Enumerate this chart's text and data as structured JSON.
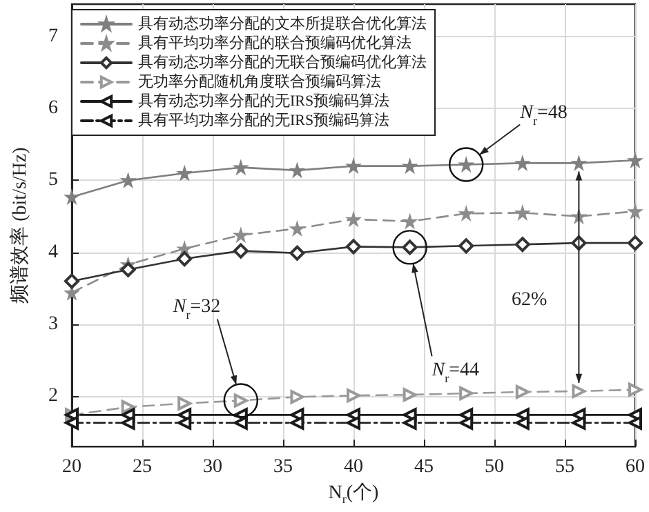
{
  "chart_data": {
    "type": "line",
    "xlabel": "N$_{r}$(个)",
    "ylabel": "频谱效率 (bit/s/Hz)",
    "x": [
      20,
      24,
      28,
      32,
      36,
      40,
      44,
      48,
      52,
      56,
      60
    ],
    "xlim": [
      20,
      60
    ],
    "xticks": [
      20,
      25,
      30,
      35,
      40,
      45,
      50,
      55,
      60
    ],
    "ylim": [
      1.3,
      7.45
    ],
    "yticks": [
      2,
      3,
      4,
      5,
      6,
      7
    ],
    "grid": true,
    "legend": "top left",
    "series": [
      {
        "name": "具有动态功率分配的文本所提联合优化算法",
        "color": "#7f7f7f",
        "marker": "star",
        "line_style": "solid",
        "values": [
          4.77,
          5.0,
          5.1,
          5.18,
          5.14,
          5.2,
          5.2,
          5.22,
          5.24,
          5.24,
          5.28
        ]
      },
      {
        "name": "具有平均功率分配的联合预编码优化算法",
        "color": "#8c8c8c",
        "marker": "star",
        "line_style": "dashed",
        "values": [
          3.44,
          3.83,
          4.05,
          4.24,
          4.33,
          4.46,
          4.43,
          4.54,
          4.55,
          4.5,
          4.57
        ]
      },
      {
        "name": "具有动态功率分配的无联合预编码优化算法",
        "color": "#333333",
        "marker": "diamond",
        "line_style": "solid",
        "values": [
          3.6,
          3.76,
          3.91,
          4.02,
          3.99,
          4.08,
          4.07,
          4.09,
          4.11,
          4.13,
          4.13
        ]
      },
      {
        "name": "无功率分配随机角度联合预编码算法",
        "color": "#9a9a9a",
        "marker": "triangle-right",
        "line_style": "dashed",
        "values": [
          1.74,
          1.85,
          1.9,
          1.94,
          1.99,
          2.01,
          2.02,
          2.04,
          2.06,
          2.07,
          2.09
        ]
      },
      {
        "name": "具有动态功率分配的无IRS预编码算法",
        "color": "#1a1a1a",
        "marker": "triangle-left",
        "line_style": "solid",
        "values": [
          1.74,
          1.74,
          1.74,
          1.74,
          1.74,
          1.74,
          1.74,
          1.74,
          1.74,
          1.74,
          1.74
        ]
      },
      {
        "name": "具有平均功率分配的无IRS预编码算法",
        "color": "#1a1a1a",
        "marker": "triangle-left",
        "line_style": "dashdot",
        "values": [
          1.63,
          1.63,
          1.63,
          1.63,
          1.63,
          1.63,
          1.63,
          1.63,
          1.63,
          1.63,
          1.63
        ]
      }
    ],
    "annotations": [
      "N$_{r}$=48",
      "N$_{r}$=44",
      "N$_{r}$=32",
      "62%"
    ]
  }
}
